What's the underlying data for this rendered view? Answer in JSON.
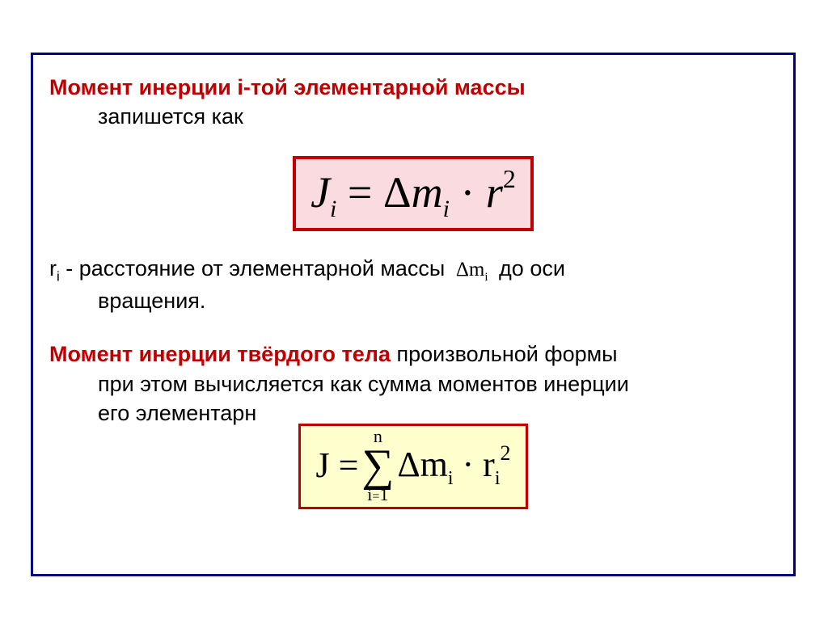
{
  "p1": {
    "lead": "Момент инерции  i-той элементарной массы",
    "tail": "запишется как"
  },
  "formula1": {
    "lhs": "J",
    "lhs_sub": "i",
    "eq": " = Δ",
    "m": "m",
    "m_sub": "i",
    "dot": " · ",
    "r": "r",
    "r_sup": "2",
    "bg": "#fadbdf",
    "border": "#c00000"
  },
  "p2": {
    "ri": "r",
    "ri_sub": "i",
    "pre": "   - расстояние от элементарной массы  ",
    "dm": "Δm",
    "dm_sub": "i",
    "post": "  до оси",
    "line2": "вращения."
  },
  "p3": {
    "lead": "Момент инерции твёрдого тела",
    "tail": " произвольной формы",
    "line2": "при этом вычисляется как сумма моментов инерции",
    "line3": "его элементарн"
  },
  "formula2": {
    "lhs": "J = ",
    "sum_top": "n",
    "sigma": "∑",
    "sum_bot_l": "i",
    "sum_bot_op": "=",
    "sum_bot_r": "1",
    "rhs_dm": "Δm",
    "rhs_dm_sub": "i",
    "rhs_dot": " · r",
    "rhs_r_sub": "i",
    "rhs_sup": "2",
    "bg": "#feffcc",
    "border": "#c00000"
  }
}
